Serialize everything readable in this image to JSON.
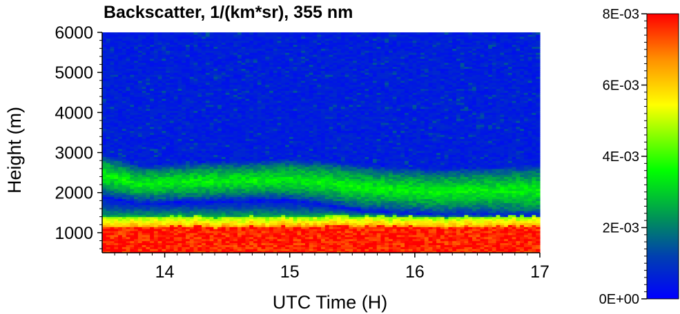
{
  "chart_data": {
    "type": "heatmap",
    "title": "Backscatter, 1/(km*sr), 355 nm",
    "xlabel": "UTC Time (H)",
    "ylabel": "Height (m)",
    "xlim": [
      13.5,
      17.0
    ],
    "ylim": [
      500,
      6000
    ],
    "x_ticks": [
      14,
      15,
      16,
      17
    ],
    "x_tick_labels": [
      "14",
      "15",
      "16",
      "17"
    ],
    "y_ticks": [
      1000,
      2000,
      3000,
      4000,
      5000,
      6000
    ],
    "y_tick_labels": [
      "1000",
      "2000",
      "3000",
      "4000",
      "5000",
      "6000"
    ],
    "colorbar": {
      "min": 0,
      "max": 0.008,
      "ticks": [
        0,
        0.002,
        0.004,
        0.006,
        0.008
      ],
      "tick_labels": [
        "0E+00",
        "2E-03",
        "4E-03",
        "6E-03",
        "8E-03"
      ],
      "colors": [
        "#0000ff",
        "#0050a0",
        "#00a050",
        "#00ff00",
        "#ffff00",
        "#ff8000",
        "#ff0000"
      ]
    },
    "layers": {
      "boundary_layer_top_m": [
        1150,
        1150,
        1160,
        1150,
        1160,
        1150,
        1160,
        1170,
        1160,
        1150,
        1160,
        1170
      ],
      "aerosol_layer_bottom_m": [
        1900,
        1750,
        1780,
        1800,
        1820,
        1830,
        1700,
        1550,
        1500,
        1450,
        1450,
        1400
      ],
      "aerosol_layer_top_m": [
        3000,
        2700,
        2750,
        2800,
        2800,
        2850,
        2800,
        2700,
        2650,
        2600,
        2650,
        2700
      ],
      "layer_time_points_h": [
        13.5,
        13.8,
        14.1,
        14.4,
        14.7,
        15.0,
        15.3,
        15.6,
        15.9,
        16.2,
        16.5,
        17.0
      ],
      "boundary_layer_value": 0.0075,
      "aerosol_layer_peak_value": 0.0035,
      "background_value": 0.0003
    }
  }
}
